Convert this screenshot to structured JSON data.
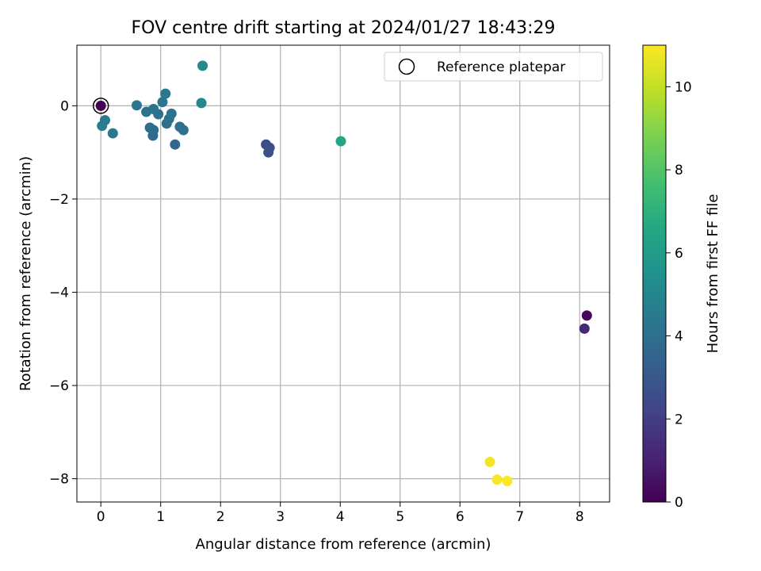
{
  "chart_data": {
    "type": "scatter",
    "title": "FOV centre drift starting at 2024/01/27 18:43:29",
    "xlabel": "Angular distance from reference (arcmin)",
    "ylabel": "Rotation from reference (arcmin)",
    "xlim": [
      -0.4,
      8.5
    ],
    "ylim": [
      -8.5,
      1.3
    ],
    "xticks": [
      0,
      1,
      2,
      3,
      4,
      5,
      6,
      7,
      8
    ],
    "yticks": [
      -8,
      -6,
      -4,
      -2,
      0
    ],
    "xtick_labels": [
      "0",
      "1",
      "2",
      "3",
      "4",
      "5",
      "6",
      "7",
      "8"
    ],
    "ytick_labels": [
      "−8",
      "−6",
      "−4",
      "−2",
      "0"
    ],
    "grid": true,
    "legend": {
      "placement": "top-right",
      "entries": [
        "Reference platepar"
      ]
    },
    "colorbar": {
      "label": "Hours from first FF file",
      "range": [
        0,
        11
      ],
      "ticks": [
        0,
        2,
        4,
        6,
        8,
        10
      ],
      "tick_labels": [
        "0",
        "2",
        "4",
        "6",
        "8",
        "10"
      ],
      "colormap": "viridis"
    },
    "reference_point": {
      "x": 0,
      "y": 0
    },
    "points": [
      {
        "x": 0.0,
        "y": 0.0,
        "hours": 0.0
      },
      {
        "x": 8.12,
        "y": -4.5,
        "hours": 0.2
      },
      {
        "x": 8.08,
        "y": -4.78,
        "hours": 1.2
      },
      {
        "x": 2.76,
        "y": -0.83,
        "hours": 2.5
      },
      {
        "x": 2.82,
        "y": -0.9,
        "hours": 2.6
      },
      {
        "x": 2.8,
        "y": -1.0,
        "hours": 2.7
      },
      {
        "x": 1.24,
        "y": -0.83,
        "hours": 3.7
      },
      {
        "x": 0.87,
        "y": -0.64,
        "hours": 3.8
      },
      {
        "x": 0.82,
        "y": -0.47,
        "hours": 3.9
      },
      {
        "x": 0.88,
        "y": -0.52,
        "hours": 3.9
      },
      {
        "x": 1.1,
        "y": -0.38,
        "hours": 4.0
      },
      {
        "x": 1.14,
        "y": -0.28,
        "hours": 4.0
      },
      {
        "x": 1.32,
        "y": -0.45,
        "hours": 4.1
      },
      {
        "x": 1.38,
        "y": -0.52,
        "hours": 4.1
      },
      {
        "x": 0.96,
        "y": -0.18,
        "hours": 4.1
      },
      {
        "x": 1.18,
        "y": -0.17,
        "hours": 4.2
      },
      {
        "x": 0.76,
        "y": -0.13,
        "hours": 4.2
      },
      {
        "x": 0.88,
        "y": -0.07,
        "hours": 4.2
      },
      {
        "x": 0.6,
        "y": 0.01,
        "hours": 4.3
      },
      {
        "x": 1.03,
        "y": 0.08,
        "hours": 4.3
      },
      {
        "x": 1.08,
        "y": 0.26,
        "hours": 4.4
      },
      {
        "x": 0.2,
        "y": -0.59,
        "hours": 4.4
      },
      {
        "x": 0.07,
        "y": -0.31,
        "hours": 4.5
      },
      {
        "x": 0.02,
        "y": -0.43,
        "hours": 4.6
      },
      {
        "x": 1.68,
        "y": 0.06,
        "hours": 5.1
      },
      {
        "x": 1.7,
        "y": 0.86,
        "hours": 5.1
      },
      {
        "x": 4.01,
        "y": -0.76,
        "hours": 6.5
      },
      {
        "x": 6.5,
        "y": -7.64,
        "hours": 10.8
      },
      {
        "x": 6.62,
        "y": -8.02,
        "hours": 10.9
      },
      {
        "x": 6.79,
        "y": -8.05,
        "hours": 11.0
      }
    ]
  }
}
